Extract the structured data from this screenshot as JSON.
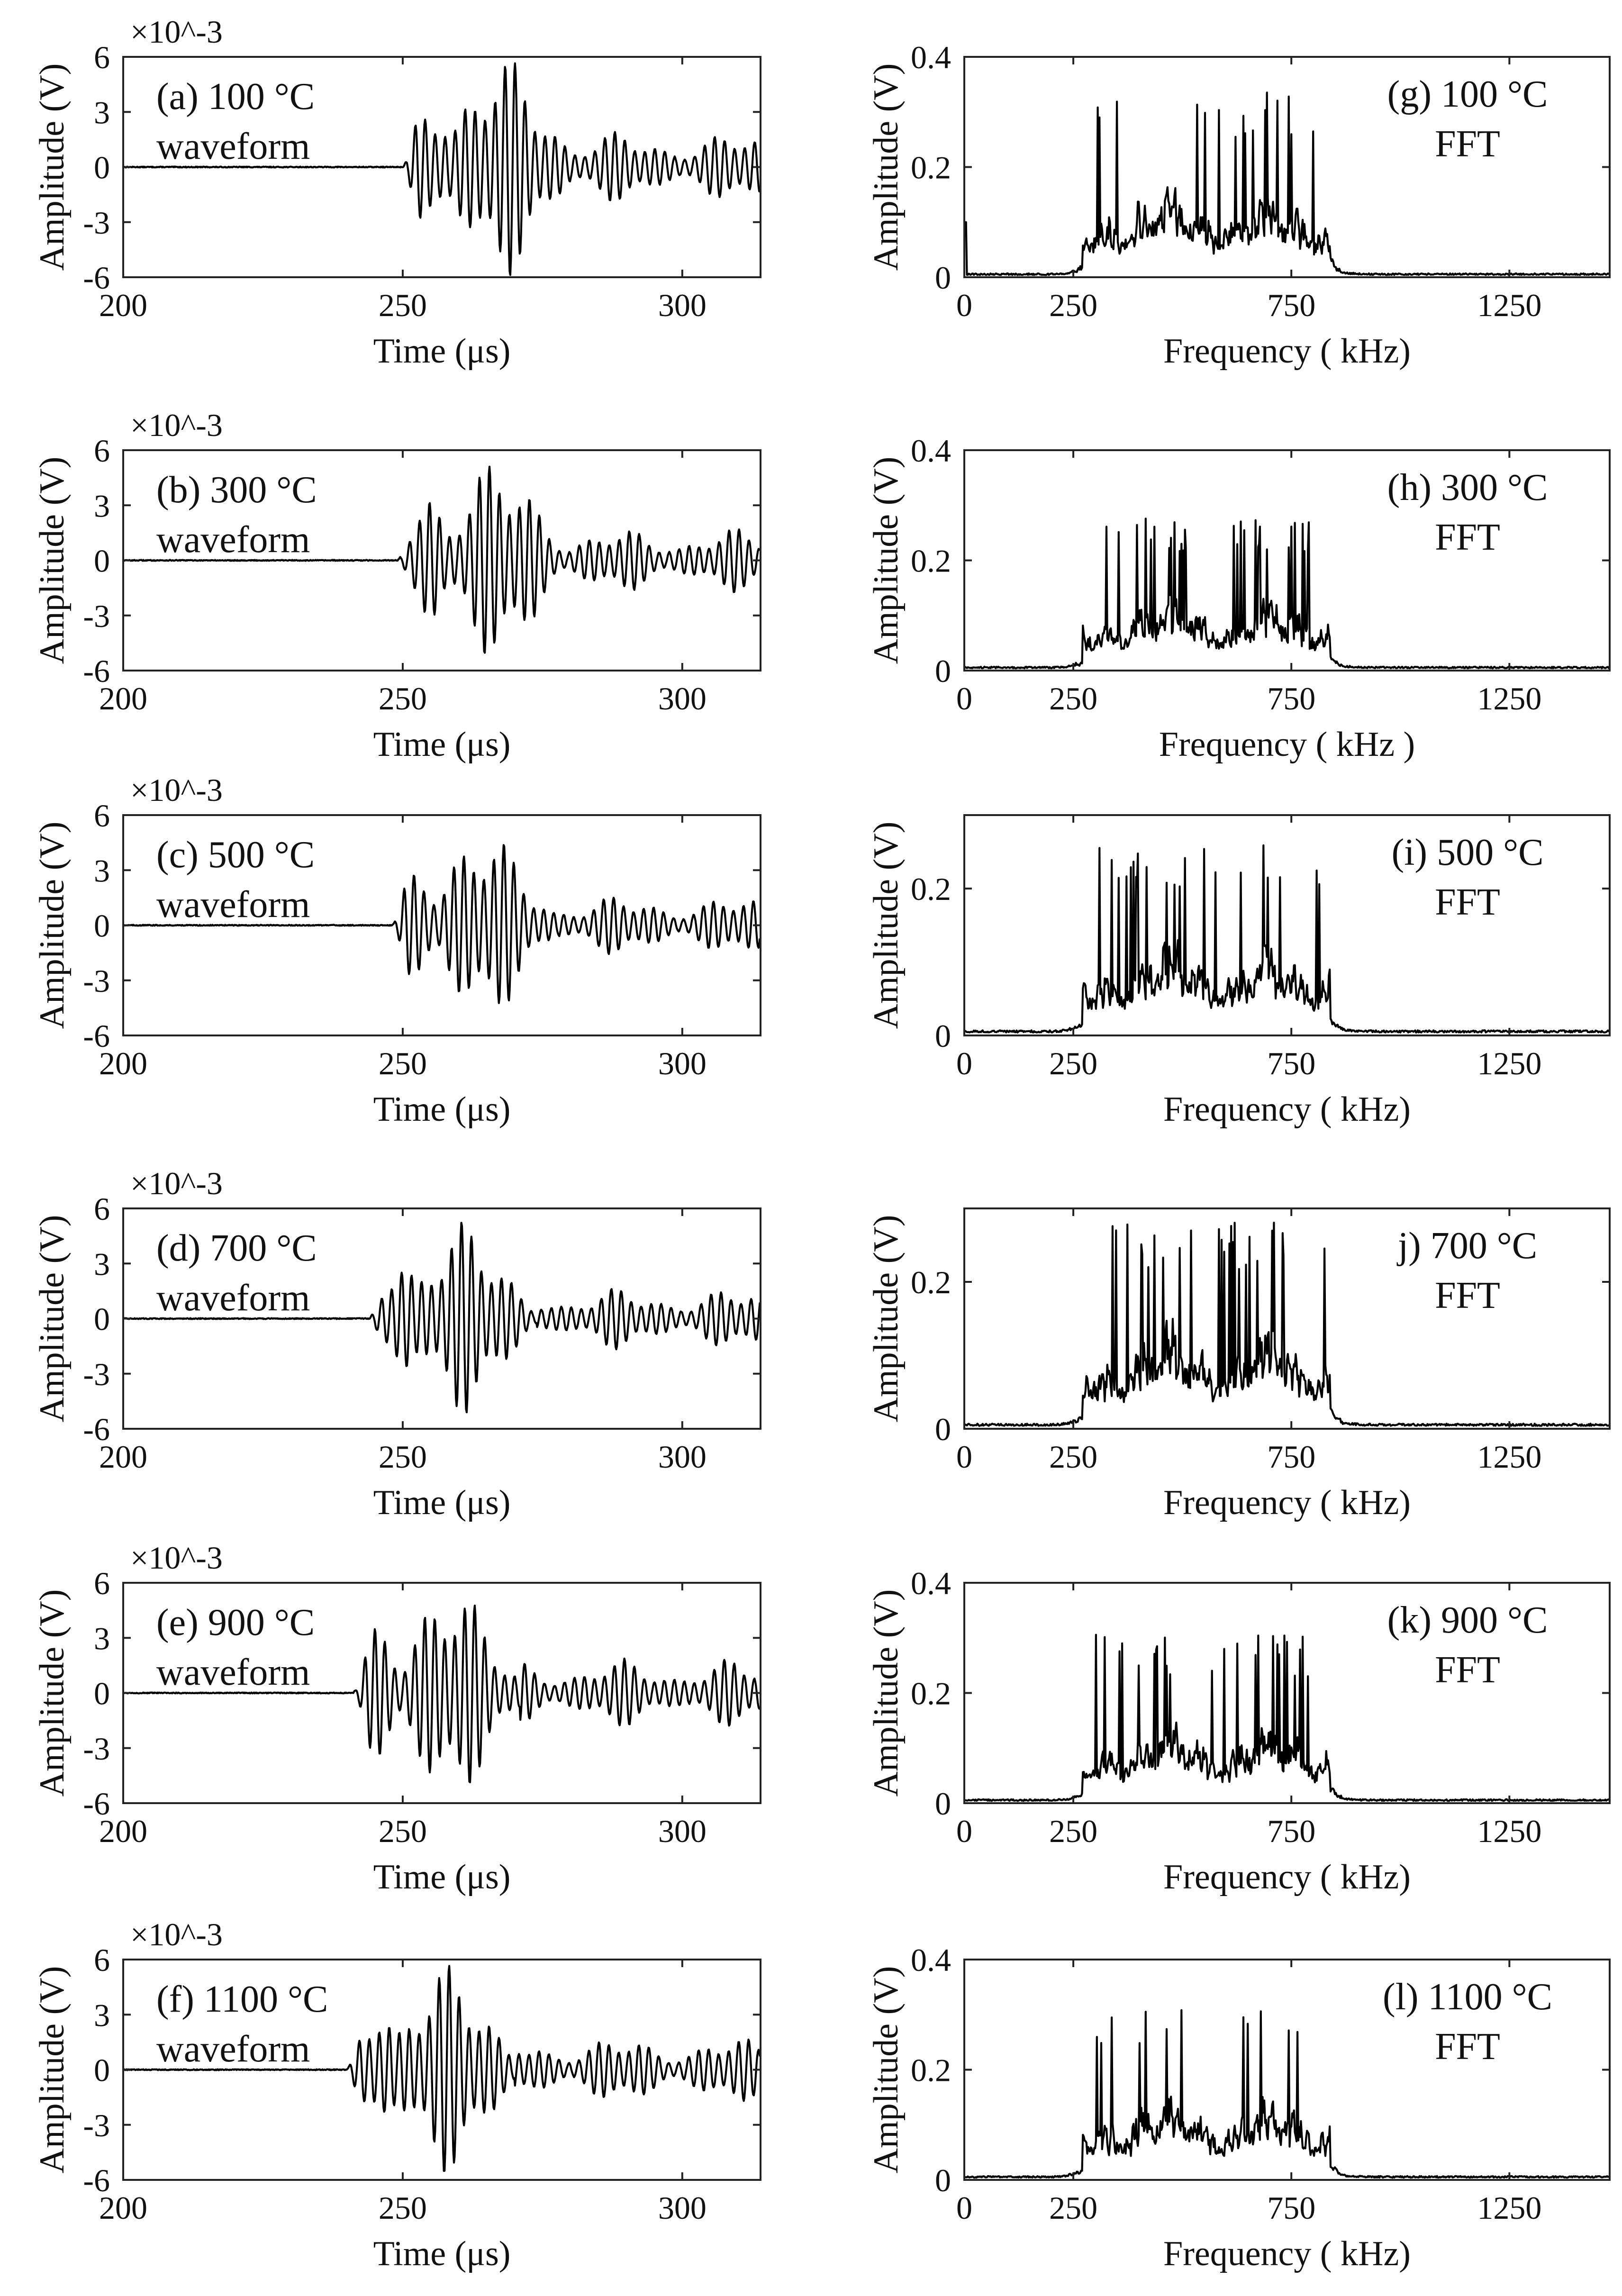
{
  "chart_data": [
    {
      "type": "line",
      "id": "a",
      "panel_label": "(a) 100 °C",
      "panel_sub": "waveform",
      "exponent": "×10^-3",
      "xlabel": "Time (μs)",
      "ylabel": "Amplitude (V)",
      "xlim": [
        200,
        314
      ],
      "ylim": [
        -6,
        6
      ],
      "xticks": [
        200,
        250,
        300
      ],
      "yticks": [
        6,
        3,
        0,
        -3,
        -6
      ],
      "onset": 250,
      "peak_time": 268,
      "peak_amp": 5.3
    },
    {
      "type": "line",
      "id": "b",
      "panel_label": "(b) 300 °C",
      "panel_sub": "waveform",
      "exponent": "×10^-3",
      "xlabel": "Time (μs)",
      "ylabel": "Amplitude (V)",
      "xlim": [
        200,
        314
      ],
      "ylim": [
        -6,
        6
      ],
      "xticks": [
        200,
        250,
        300
      ],
      "yticks": [
        6,
        3,
        0,
        -3,
        -6
      ],
      "onset": 249,
      "peak_time": 267,
      "peak_amp": 4.8
    },
    {
      "type": "line",
      "id": "c",
      "panel_label": "(c) 500 °C",
      "panel_sub": "waveform",
      "exponent": "×10^-3",
      "xlabel": "Time (μs)",
      "ylabel": "Amplitude (V)",
      "xlim": [
        200,
        314
      ],
      "ylim": [
        -6,
        6
      ],
      "xticks": [
        200,
        250,
        300
      ],
      "yticks": [
        6,
        3,
        0,
        -3,
        -6
      ],
      "onset": 248,
      "peak_time": 265,
      "peak_amp": 4.5
    },
    {
      "type": "line",
      "id": "d",
      "panel_label": "(d) 700 °C",
      "panel_sub": "waveform",
      "exponent": "×10^-3",
      "xlabel": "Time (μs)",
      "ylabel": "Amplitude (V)",
      "xlim": [
        200,
        314
      ],
      "ylim": [
        -6,
        6
      ],
      "xticks": [
        200,
        250,
        300
      ],
      "yticks": [
        6,
        3,
        0,
        -3,
        -6
      ],
      "onset": 244,
      "peak_time": 261,
      "peak_amp": 4.6
    },
    {
      "type": "line",
      "id": "e",
      "panel_label": "(e) 900 °C",
      "panel_sub": "waveform",
      "exponent": "×10^-3",
      "xlabel": "Time (μs)",
      "ylabel": "Amplitude (V)",
      "xlim": [
        200,
        314
      ],
      "ylim": [
        -6,
        6
      ],
      "xticks": [
        200,
        250,
        300
      ],
      "yticks": [
        6,
        3,
        0,
        -3,
        -6
      ],
      "onset": 241,
      "peak_time": 259,
      "peak_amp": 5.1
    },
    {
      "type": "line",
      "id": "f",
      "panel_label": "(f) 1100 °C",
      "panel_sub": "waveform",
      "exponent": "×10^-3",
      "xlabel": "Time (μs)",
      "ylabel": "Amplitude (V)",
      "xlim": [
        200,
        314
      ],
      "ylim": [
        -6,
        6
      ],
      "xticks": [
        200,
        250,
        300
      ],
      "yticks": [
        6,
        3,
        0,
        -3,
        -6
      ],
      "onset": 240,
      "peak_time": 258,
      "peak_amp": 5.0
    },
    {
      "type": "line",
      "id": "g",
      "panel_label": "(g) 100 °C",
      "panel_sub": "FFT",
      "xlabel": "Frequency ( kHz)",
      "ylabel": "Amplitude (V)",
      "xlim": [
        0,
        1480
      ],
      "ylim": [
        0,
        0.4
      ],
      "xticks": [
        0,
        250,
        750,
        1250
      ],
      "yticks": [
        0.4,
        0.2,
        0
      ],
      "peak_amp": 0.33
    },
    {
      "type": "line",
      "id": "h",
      "panel_label": "(h) 300 °C",
      "panel_sub": "FFT",
      "xlabel": "Frequency ( kHz )",
      "ylabel": "Amplitude (V)",
      "xlim": [
        0,
        1480
      ],
      "ylim": [
        0,
        0.4
      ],
      "xticks": [
        0,
        250,
        750,
        1250
      ],
      "yticks": [
        0.4,
        0.2,
        0
      ],
      "peak_amp": 0.27
    },
    {
      "type": "line",
      "id": "i",
      "panel_label": "(i) 500 °C",
      "panel_sub": "FFT",
      "xlabel": "Frequency ( kHz)",
      "ylabel": "Amplitude (V)",
      "xlim": [
        0,
        1480
      ],
      "ylim": [
        0,
        0.3
      ],
      "xticks": [
        0,
        250,
        750,
        1250
      ],
      "yticks": [
        0.2,
        0
      ],
      "peak_amp": 0.26
    },
    {
      "type": "line",
      "id": "j",
      "panel_label": "j) 700 °C",
      "panel_sub": "FFT",
      "xlabel": "Frequency ( kHz)",
      "ylabel": "Amplitude (V)",
      "xlim": [
        0,
        1480
      ],
      "ylim": [
        0,
        0.3
      ],
      "xticks": [
        0,
        250,
        750,
        1250
      ],
      "yticks": [
        0.2,
        0
      ],
      "peak_amp": 0.28
    },
    {
      "type": "line",
      "id": "k",
      "panel_label": "(k) 900 °C",
      "panel_sub": "FFT",
      "xlabel": "Frequency ( kHz)",
      "ylabel": "Amplitude (V)",
      "xlim": [
        0,
        1480
      ],
      "ylim": [
        0,
        0.4
      ],
      "xticks": [
        0,
        250,
        750,
        1250
      ],
      "yticks": [
        0.4,
        0.2,
        0
      ],
      "peak_amp": 0.3
    },
    {
      "type": "line",
      "id": "l",
      "panel_label": "(l) 1100 °C",
      "panel_sub": "FFT",
      "xlabel": "Frequency ( kHz)",
      "ylabel": "Amplitude (V)",
      "xlim": [
        0,
        1480
      ],
      "ylim": [
        0,
        0.4
      ],
      "xticks": [
        0,
        250,
        750,
        1250
      ],
      "yticks": [
        0.4,
        0.2,
        0
      ],
      "peak_amp": 0.32
    }
  ]
}
